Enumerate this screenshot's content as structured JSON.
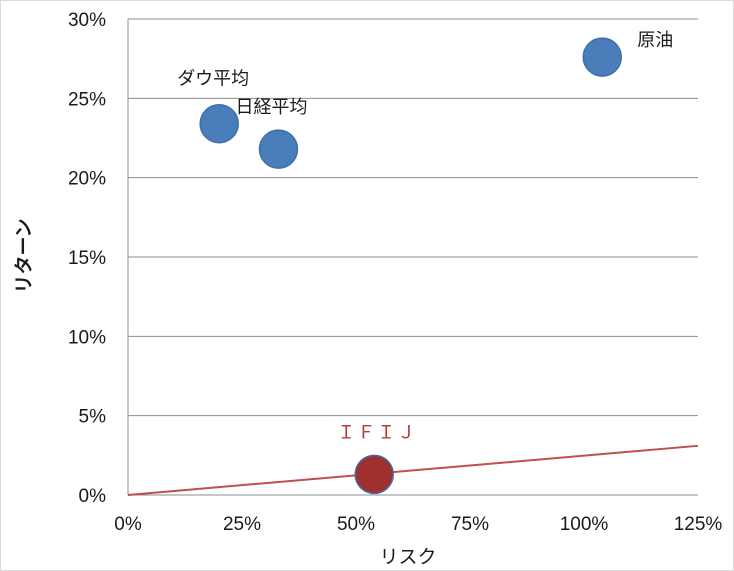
{
  "chart_data": {
    "type": "scatter",
    "title": "",
    "xlabel": "リスク",
    "ylabel": "リターン",
    "xlim": [
      0,
      1.25
    ],
    "ylim": [
      0,
      0.3
    ],
    "x_ticks": [
      "0%",
      "25%",
      "50%",
      "75%",
      "100%",
      "125%"
    ],
    "y_ticks": [
      "0%",
      "5%",
      "10%",
      "15%",
      "20%",
      "25%",
      "30%"
    ],
    "grid": "horizontal",
    "legend": "none",
    "points": [
      {
        "label": "ダウ平均",
        "x": 0.2,
        "y": 0.234,
        "color": "#4a7ebb"
      },
      {
        "label": "日経平均",
        "x": 0.33,
        "y": 0.218,
        "color": "#4a7ebb"
      },
      {
        "label": "原油",
        "x": 1.04,
        "y": 0.276,
        "color": "#4a7ebb"
      },
      {
        "label": "ＩＦＩＪ",
        "x": 0.54,
        "y": 0.013,
        "color": "#a0302e",
        "label_color": "#b83c3c"
      }
    ],
    "trend_line": {
      "from": [
        0,
        0
      ],
      "to": [
        1.25,
        0.031
      ],
      "color": "#c0504d"
    }
  }
}
